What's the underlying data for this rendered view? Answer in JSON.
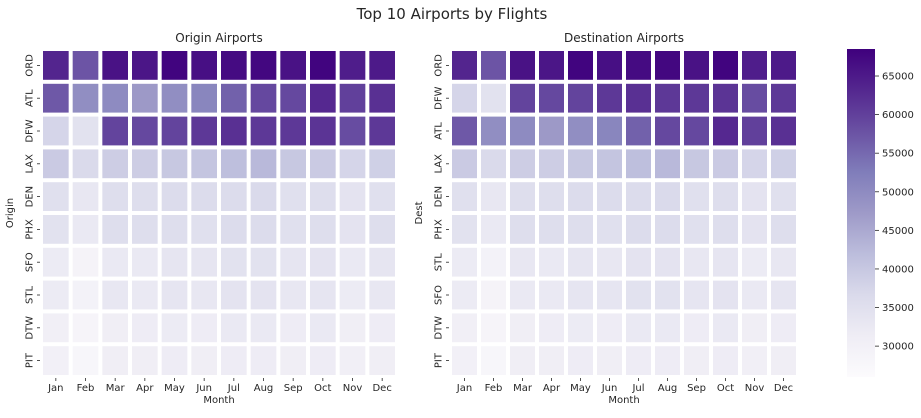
{
  "chart_data": {
    "type": "heatmap",
    "title": "Top 10 Airports by Flights",
    "color_scale": {
      "min": 26000,
      "max": 68500,
      "ticks": [
        30000,
        35000,
        40000,
        45000,
        50000,
        55000,
        60000,
        65000
      ],
      "tick_labels": [
        "30000",
        "35000",
        "40000",
        "45000",
        "50000",
        "55000",
        "60000",
        "65000"
      ],
      "low_color": "#fcfbfd",
      "high_color": "#3f007d"
    },
    "panels": [
      {
        "title": "Origin Airports",
        "xlabel": "Month",
        "ylabel": "Origin",
        "months": [
          "Jan",
          "Feb",
          "Mar",
          "Apr",
          "May",
          "Jun",
          "Jul",
          "Aug",
          "Sep",
          "Oct",
          "Nov",
          "Dec"
        ],
        "rows": [
          {
            "label": "ORD",
            "values": [
              63500,
              57500,
              66000,
              65500,
              68000,
              66500,
              67000,
              67500,
              66000,
              68000,
              64500,
              65000
            ]
          },
          {
            "label": "ATL",
            "values": [
              57000,
              49500,
              50000,
              47500,
              49500,
              51000,
              56000,
              59000,
              59000,
              63000,
              60000,
              62000
            ]
          },
          {
            "label": "DFW",
            "values": [
              37500,
              34500,
              59500,
              59000,
              59500,
              61000,
              62000,
              61000,
              61000,
              61500,
              58500,
              61000
            ]
          },
          {
            "label": "LAX",
            "values": [
              39500,
              36500,
              39000,
              39000,
              40000,
              40500,
              41500,
              42500,
              40000,
              39500,
              37500,
              38500
            ]
          },
          {
            "label": "DEN",
            "values": [
              35000,
              33000,
              35500,
              35500,
              36000,
              36000,
              36000,
              36500,
              35000,
              35500,
              34000,
              35000
            ]
          },
          {
            "label": "PHX",
            "values": [
              34500,
              32500,
              35500,
              35500,
              35500,
              35000,
              36000,
              36000,
              35000,
              35500,
              34000,
              35500
            ]
          },
          {
            "label": "SFO",
            "values": [
              32000,
              29000,
              32500,
              32500,
              33500,
              33500,
              34500,
              34500,
              33500,
              34000,
              32500,
              33500
            ]
          },
          {
            "label": "STL",
            "values": [
              32000,
              29500,
              33000,
              32500,
              33500,
              33000,
              34000,
              34000,
              33000,
              33500,
              32000,
              33000
            ]
          },
          {
            "label": "DTW",
            "values": [
              30500,
              28500,
              31000,
              31500,
              32000,
              31500,
              32500,
              32500,
              31500,
              32500,
              31000,
              31500
            ]
          },
          {
            "label": "PIT",
            "values": [
              30000,
              28000,
              31000,
              31000,
              31500,
              31000,
              31500,
              31500,
              31000,
              31500,
              30500,
              31000
            ]
          }
        ]
      },
      {
        "title": "Destination Airports",
        "xlabel": "Month",
        "ylabel": "Dest",
        "months": [
          "Jan",
          "Feb",
          "Mar",
          "Apr",
          "May",
          "Jun",
          "Jul",
          "Aug",
          "Sep",
          "Oct",
          "Nov",
          "Dec"
        ],
        "rows": [
          {
            "label": "ORD",
            "values": [
              63500,
              57500,
              66000,
              65500,
              68000,
              66500,
              67000,
              67500,
              66000,
              68000,
              64500,
              65000
            ]
          },
          {
            "label": "DFW",
            "values": [
              37500,
              34500,
              59500,
              59000,
              59500,
              61000,
              62000,
              61000,
              61000,
              61500,
              58500,
              61000
            ]
          },
          {
            "label": "ATL",
            "values": [
              57000,
              49500,
              50000,
              47500,
              49500,
              51000,
              56000,
              59000,
              59000,
              63000,
              60000,
              62000
            ]
          },
          {
            "label": "LAX",
            "values": [
              39500,
              36500,
              39000,
              39000,
              40000,
              40500,
              41500,
              42500,
              40000,
              39500,
              37500,
              38500
            ]
          },
          {
            "label": "DEN",
            "values": [
              35000,
              33000,
              35500,
              35500,
              36000,
              36000,
              36000,
              36500,
              35000,
              35500,
              34000,
              35000
            ]
          },
          {
            "label": "PHX",
            "values": [
              34500,
              32500,
              35500,
              35500,
              35500,
              35000,
              36000,
              36000,
              35000,
              35500,
              34000,
              35500
            ]
          },
          {
            "label": "STL",
            "values": [
              32000,
              29500,
              33000,
              32500,
              33500,
              33000,
              34000,
              34000,
              33000,
              33500,
              32000,
              33000
            ]
          },
          {
            "label": "SFO",
            "values": [
              32000,
              29000,
              32500,
              32500,
              33500,
              33500,
              34500,
              34500,
              33500,
              34000,
              32500,
              33500
            ]
          },
          {
            "label": "DTW",
            "values": [
              30500,
              28500,
              31000,
              31500,
              32000,
              31500,
              32500,
              32500,
              31500,
              32500,
              31000,
              31500
            ]
          },
          {
            "label": "PIT",
            "values": [
              30000,
              28000,
              31000,
              31000,
              31500,
              31000,
              31500,
              31500,
              31000,
              31500,
              30500,
              31000
            ]
          }
        ]
      }
    ]
  }
}
